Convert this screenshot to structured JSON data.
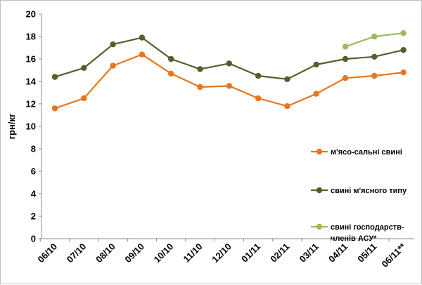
{
  "chart_data": {
    "type": "line",
    "categories": [
      "06/10",
      "07/10",
      "08/10",
      "09/10",
      "10/10",
      "11/10",
      "12/10",
      "01/11",
      "02/11",
      "03/11",
      "04/11",
      "05/11",
      "06/11**"
    ],
    "series": [
      {
        "name": "м'ясо-сальні свині",
        "legend_lines": [
          "м'ясо-сальні свині"
        ],
        "color": "#e8761c",
        "values": [
          11.6,
          12.5,
          15.4,
          16.4,
          14.7,
          13.5,
          13.6,
          12.5,
          11.8,
          12.9,
          14.3,
          14.5,
          14.8
        ]
      },
      {
        "name": "свині м'ясного типу",
        "legend_lines": [
          "свині м'ясного типу"
        ],
        "color": "#4f6228",
        "values": [
          14.4,
          15.2,
          17.3,
          17.9,
          16.0,
          15.1,
          15.6,
          14.5,
          14.2,
          15.5,
          16.0,
          16.2,
          16.8
        ]
      },
      {
        "name": "свині господарств-членів АСУ*",
        "legend_lines": [
          "свині господарств-",
          "членів АСУ*"
        ],
        "color": "#9bbb59",
        "values": [
          null,
          null,
          null,
          null,
          null,
          null,
          null,
          null,
          null,
          null,
          17.1,
          18.0,
          18.3
        ]
      }
    ],
    "ylabel": "грн/кг",
    "xlabel": "",
    "ylim": [
      0,
      20
    ],
    "yticks": [
      0,
      2,
      4,
      6,
      8,
      10,
      12,
      14,
      16,
      18,
      20
    ],
    "grid": false,
    "legend_position": "right"
  }
}
